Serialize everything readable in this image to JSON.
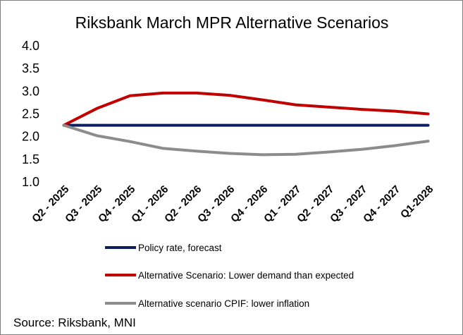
{
  "chart_data": {
    "type": "line",
    "title": "Riksbank March MPR Alternative Scenarios",
    "categories": [
      "Q2 - 2025",
      "Q3 - 2025",
      "Q4 - 2025",
      "Q1 - 2026",
      "Q2 - 2026",
      "Q3 - 2026",
      "Q4 - 2026",
      "Q1 - 2027",
      "Q2 - 2027",
      "Q3 - 2027",
      "Q4 - 2027",
      "Q1-2028"
    ],
    "y_ticks": [
      "4.0",
      "3.5",
      "3.0",
      "2.5",
      "2.0",
      "1.5",
      "1.0"
    ],
    "ylim": [
      1.0,
      4.0
    ],
    "xlabel": "",
    "ylabel": "",
    "grid": false,
    "legend_position": "bottom",
    "series": [
      {
        "name": "Policy rate, forecast",
        "color": "#0b1f5c",
        "values": [
          2.25,
          2.25,
          2.25,
          2.25,
          2.25,
          2.25,
          2.25,
          2.25,
          2.25,
          2.25,
          2.25,
          2.25
        ]
      },
      {
        "name": "Alternative Scenario: Lower demand than expected",
        "color": "#c00000",
        "values": [
          2.25,
          2.62,
          2.9,
          2.96,
          2.96,
          2.91,
          2.81,
          2.7,
          2.65,
          2.6,
          2.56,
          2.5
        ]
      },
      {
        "name": "Alternative scenario CPIF: lower inflation",
        "color": "#8c8c8c",
        "values": [
          2.25,
          2.02,
          1.89,
          1.74,
          1.68,
          1.63,
          1.6,
          1.61,
          1.66,
          1.72,
          1.8,
          1.9
        ]
      }
    ],
    "source": "Source: Riksbank, MNI"
  }
}
